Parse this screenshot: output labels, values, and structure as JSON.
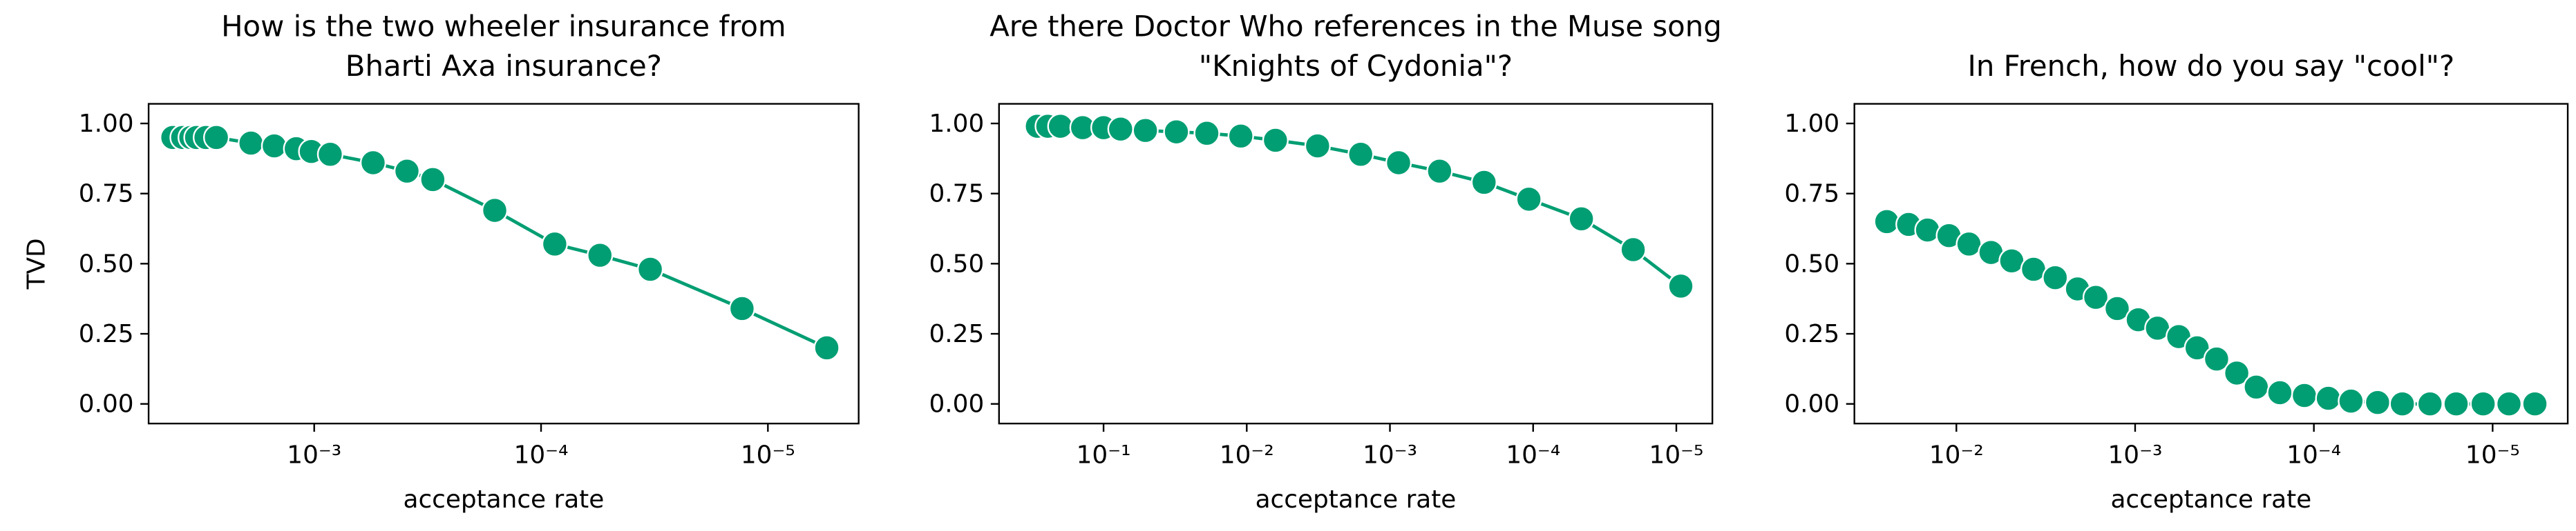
{
  "chart_data": [
    {
      "type": "line",
      "title": [
        "How is the two wheeler insurance from",
        "Bharti Axa insurance?"
      ],
      "xlabel": "acceptance rate",
      "ylabel": "TVD",
      "xscale": "log",
      "x": [
        0.0042,
        0.0038,
        0.0035,
        0.0033,
        0.003,
        0.0027,
        0.0019,
        0.0015,
        0.0012,
        0.00103,
        0.00085,
        0.00055,
        0.00039,
        0.0003,
        0.00016,
        8.7e-05,
        5.5e-05,
        3.3e-05,
        1.3e-05,
        5.5e-06
      ],
      "series": [
        {
          "color": "#029e73",
          "values": [
            0.95,
            0.95,
            0.95,
            0.95,
            0.95,
            0.95,
            0.93,
            0.92,
            0.91,
            0.9,
            0.89,
            0.86,
            0.83,
            0.8,
            0.69,
            0.57,
            0.53,
            0.48,
            0.34,
            0.2
          ]
        }
      ],
      "xlim": [
        0.00537,
        3.98e-06
      ],
      "xticks": [
        {
          "value": 0.001,
          "label": "10⁻³"
        },
        {
          "value": 0.0001,
          "label": "10⁻⁴"
        },
        {
          "value": 1e-05,
          "label": "10⁻⁵"
        }
      ],
      "ylim": [
        -0.07,
        1.07
      ],
      "yticks": [
        {
          "value": 0,
          "label": "0.00"
        },
        {
          "value": 0.25,
          "label": "0.25"
        },
        {
          "value": 0.5,
          "label": "0.50"
        },
        {
          "value": 0.75,
          "label": "0.75"
        },
        {
          "value": 1,
          "label": "1.00"
        }
      ]
    },
    {
      "type": "line",
      "title": [
        "Are there Doctor Who references in the Muse song",
        "\"Knights of Cydonia\"?"
      ],
      "xlabel": "acceptance rate",
      "xscale": "log",
      "x": [
        0.29,
        0.245,
        0.2,
        0.14,
        0.1,
        0.076,
        0.051,
        0.031,
        0.019,
        0.011,
        0.0063,
        0.0032,
        0.0016,
        0.00087,
        0.00045,
        0.00022,
        0.000107,
        4.6e-05,
        2e-05,
        9.3e-06
      ],
      "series": [
        {
          "color": "#029e73",
          "values": [
            0.99,
            0.99,
            0.99,
            0.985,
            0.985,
            0.98,
            0.975,
            0.97,
            0.965,
            0.955,
            0.94,
            0.92,
            0.89,
            0.86,
            0.83,
            0.79,
            0.73,
            0.66,
            0.55,
            0.42
          ]
        }
      ],
      "xlim": [
        0.537,
        5.6e-06
      ],
      "xticks": [
        {
          "value": 0.1,
          "label": "10⁻¹"
        },
        {
          "value": 0.01,
          "label": "10⁻²"
        },
        {
          "value": 0.001,
          "label": "10⁻³"
        },
        {
          "value": 0.0001,
          "label": "10⁻⁴"
        },
        {
          "value": 1e-05,
          "label": "10⁻⁵"
        }
      ],
      "ylim": [
        -0.07,
        1.07
      ],
      "yticks": [
        {
          "value": 0,
          "label": "0.00"
        },
        {
          "value": 0.25,
          "label": "0.25"
        },
        {
          "value": 0.5,
          "label": "0.50"
        },
        {
          "value": 0.75,
          "label": "0.75"
        },
        {
          "value": 1,
          "label": "1.00"
        }
      ]
    },
    {
      "type": "line",
      "title": [
        "In French, how do you say \"cool\"?"
      ],
      "xlabel": "acceptance rate",
      "xscale": "log",
      "x": [
        0.0245,
        0.0185,
        0.0145,
        0.011,
        0.0085,
        0.0064,
        0.0049,
        0.0037,
        0.0028,
        0.0021,
        0.00166,
        0.00126,
        0.00096,
        0.00075,
        0.00057,
        0.00045,
        0.00035,
        0.00027,
        0.00021,
        0.000155,
        0.000113,
        8.3e-05,
        6.2e-05,
        4.4e-05,
        3.2e-05,
        2.24e-05,
        1.6e-05,
        1.13e-05,
        8.1e-06,
        5.8e-06
      ],
      "series": [
        {
          "color": "#029e73",
          "values": [
            0.65,
            0.64,
            0.62,
            0.6,
            0.57,
            0.54,
            0.51,
            0.48,
            0.45,
            0.41,
            0.38,
            0.34,
            0.3,
            0.27,
            0.24,
            0.2,
            0.16,
            0.11,
            0.06,
            0.04,
            0.03,
            0.02,
            0.01,
            0.005,
            0,
            0,
            0,
            0,
            0,
            0
          ]
        }
      ],
      "xlim": [
        0.0372,
        3.8e-06
      ],
      "xticks": [
        {
          "value": 0.01,
          "label": "10⁻²"
        },
        {
          "value": 0.001,
          "label": "10⁻³"
        },
        {
          "value": 0.0001,
          "label": "10⁻⁴"
        },
        {
          "value": 1e-05,
          "label": "10⁻⁵"
        }
      ],
      "ylim": [
        -0.07,
        1.07
      ],
      "yticks": [
        {
          "value": 0,
          "label": "0.00"
        },
        {
          "value": 0.25,
          "label": "0.25"
        },
        {
          "value": 0.5,
          "label": "0.50"
        },
        {
          "value": 0.75,
          "label": "0.75"
        },
        {
          "value": 1,
          "label": "1.00"
        }
      ]
    }
  ]
}
